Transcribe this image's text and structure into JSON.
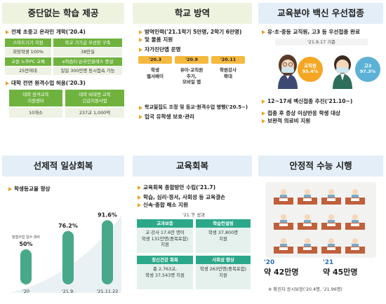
{
  "panel1": {
    "title": "중단없는 학습 제공",
    "bullet1": "전체 초중고 온라인 개학('20.4)",
    "grid1": [
      {
        "head": "스마트기기 지원",
        "value": "희망학생 100%"
      },
      {
        "head": "학교 기가급 무선망 구축",
        "value": "38만실"
      },
      {
        "head": "교원 노후PC 교체",
        "value": "25만여대"
      },
      {
        "head": "e학습터·온라인클래스 증설",
        "value": "일일 300만명 동시접속 가능"
      }
    ],
    "bullet2": "대학 전면 원격수업 허용('20.3)",
    "grid2": [
      {
        "head": "대학 원격교육\n지원센터",
        "value": "10개소"
      },
      {
        "head": "대학 비대면 교육\n긴급지원사업",
        "value": "237교 1,000억"
      }
    ]
  },
  "panel2": {
    "title": "학교 방역",
    "bullet1": "방역인력('21.1학기 5만명, 2학기 6만명)",
    "bullet1b": "및 물품 지원",
    "bullet2": "자가진단앱 운영",
    "timeline": [
      {
        "date": "'20.3",
        "text": "학생\n웹서베이"
      },
      {
        "date": "'20.9",
        "text": "유아·교직원\n추가,\n모바일 앱"
      },
      {
        "date": "'20.11",
        "text": "학원강사\n확대"
      }
    ],
    "bullet3": "학교밀집도 조정 및 등교·원격수업 병행('20.5~)",
    "bullet4": "입국 유학생 보호·관리"
  },
  "panel3": {
    "title": "교육분야 백신 우선접종",
    "bullet1": "유·초·중등 교직원, 고3 등 우선접종 완료",
    "subnote": "'21.9.17 기준",
    "badge1": {
      "label": "교직원",
      "value": "95.4%"
    },
    "badge2": {
      "label": "고3",
      "value": "97.3%"
    },
    "bullet2": "12~17세 백신접종 추진('21.10~)",
    "bullet3": "접종 후 증상 이상반응 학생 대상",
    "bullet3b": "보완적 의료비 지원"
  },
  "panel4": {
    "title": "선제적 일상회복",
    "bullet1": "학생등교율 향상"
  },
  "chart_data": {
    "type": "bar",
    "categories": [
      "'20",
      "'21.9.",
      "'21.11.22"
    ],
    "values": [
      50,
      76.2,
      91.6
    ],
    "value_labels": [
      "50%",
      "76.2%",
      "91.6%"
    ],
    "annotation": "밀접수업 일수 대비",
    "colors": [
      "#47a88a",
      "#47a88a",
      "#47a88a"
    ]
  },
  "panel5": {
    "title": "교육회복",
    "bullet1": "교육회복 종합방안 수립('21.7)",
    "bullet2": "학습, 심리·정서, 사회성 등 교육결손",
    "bullet2b": "신속·종합 해소 지원",
    "results_label": "'21.下 성과",
    "boxes": [
      {
        "head": "교과보충",
        "body": "교·강사 17.6만 명이\n학생 131만명(중복포함)\n지원"
      },
      {
        "head": "학습컨설팅",
        "body": "학생 37,800명\n지원"
      },
      {
        "head": "정신건강 회복",
        "body": "총 2,763교,\n학생 37,543명 지원"
      },
      {
        "head": "사회성 향상",
        "body": "학생 263만명(중복포함)\n지원"
      }
    ]
  },
  "panel6": {
    "title": "안정적 수능 시행",
    "y1": "'20",
    "v1": "약 42만명",
    "y2": "'21",
    "v2": "약 45만명",
    "note": "※ 확진자 응시보장('20.4명, '21.96명)"
  }
}
